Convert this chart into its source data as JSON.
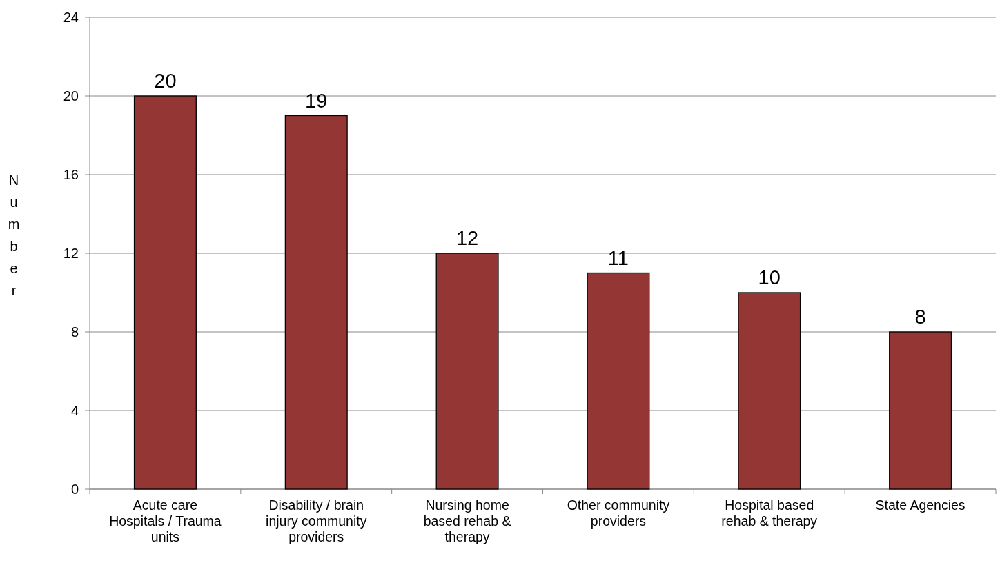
{
  "chart_data": {
    "type": "bar",
    "ylabel": "Number",
    "categories": [
      "Acute care Hospitals / Trauma units",
      "Disability / brain injury community providers",
      "Nursing home based rehab & therapy",
      "Other community providers",
      "Hospital based rehab & therapy",
      "State Agencies"
    ],
    "values": [
      20,
      19,
      12,
      11,
      10,
      8
    ],
    "color": "#943634",
    "ylim": [
      0,
      24
    ],
    "yticks": [
      0,
      4,
      8,
      12,
      16,
      20,
      24
    ],
    "grid": "y",
    "data_labels": true
  }
}
